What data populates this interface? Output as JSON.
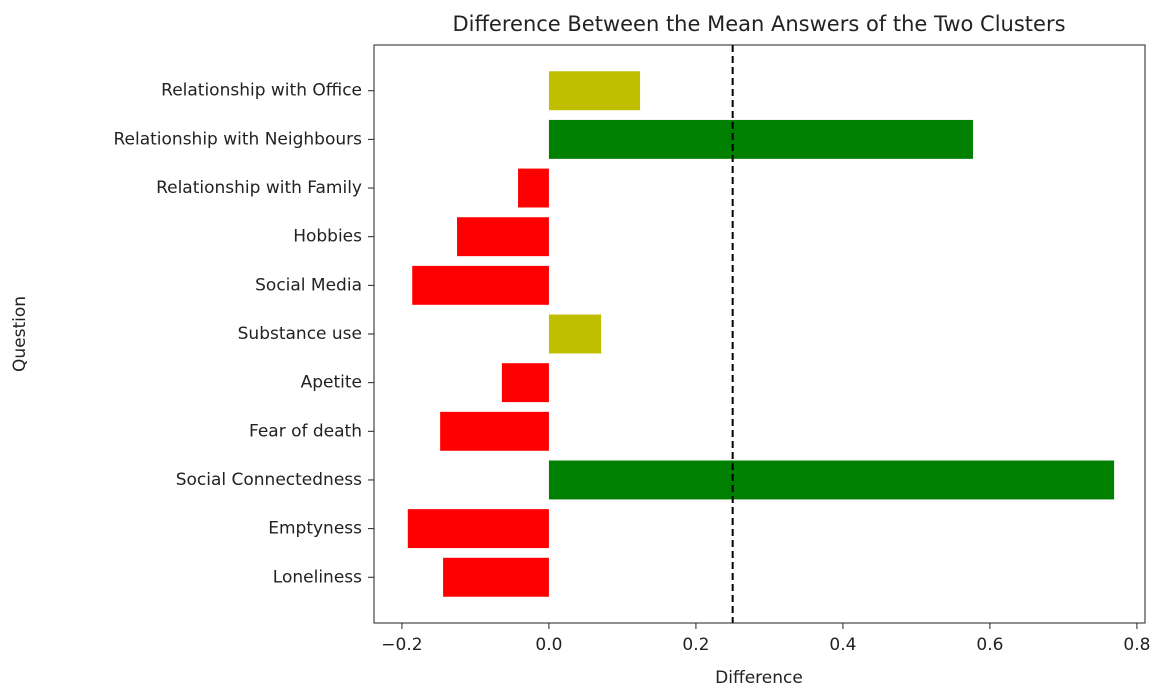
{
  "chart_data": {
    "type": "barh",
    "title": "Difference Between the Mean Answers of the Two Clusters",
    "xlabel": "Difference",
    "ylabel": "Question",
    "categories": [
      "Loneliness",
      "Emptyness",
      "Social Connectedness",
      "Fear of death",
      "Apetite",
      "Substance use",
      "Social Media",
      "Hobbies ",
      "Relationship with Family",
      "Relationship with Neighbours",
      "Relationship with Office"
    ],
    "values": [
      -0.144,
      -0.192,
      0.769,
      -0.148,
      -0.064,
      0.071,
      -0.186,
      -0.125,
      -0.042,
      0.577,
      0.124
    ],
    "colors": [
      "#ff0000",
      "#ff0000",
      "#008000",
      "#ff0000",
      "#ff0000",
      "#bfbf00",
      "#ff0000",
      "#ff0000",
      "#ff0000",
      "#008000",
      "#bfbf00"
    ],
    "xlim": [
      -0.238,
      0.811
    ],
    "xticks": [
      {
        "value": -0.2,
        "label": "−0.2"
      },
      {
        "value": 0,
        "label": "0.0"
      },
      0.2,
      0.4,
      0.6,
      0.8
    ],
    "reference_line": 0.25,
    "grid": false
  }
}
